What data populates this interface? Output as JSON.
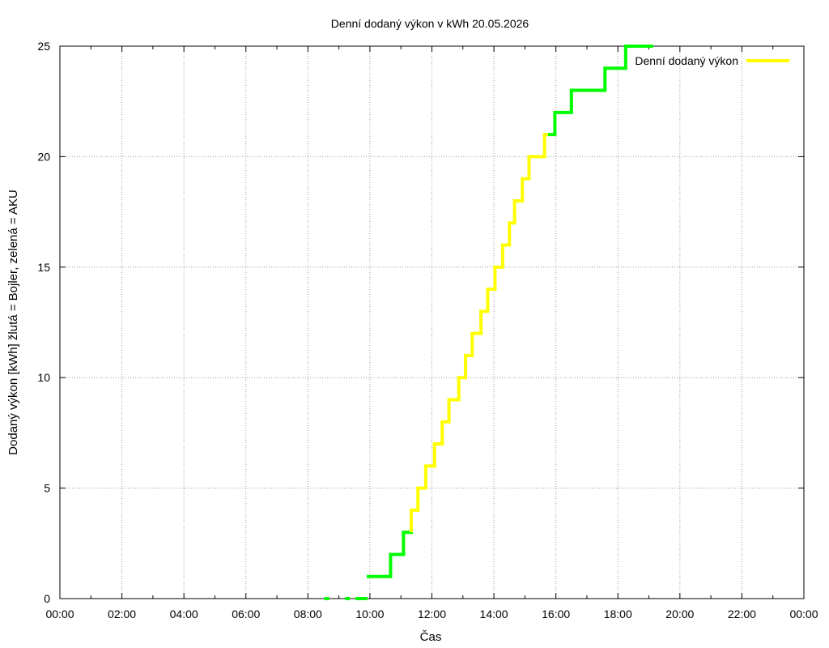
{
  "chart_data": {
    "type": "line",
    "title": "Denní dodaný výkon v kWh 20.05.2026",
    "xlabel": "Čas",
    "ylabel": "Dodaný výkon [kWh]  žlutá = Bojler, zelená = AKU",
    "x_ticks": [
      "00:00",
      "02:00",
      "04:00",
      "06:00",
      "08:00",
      "10:00",
      "12:00",
      "14:00",
      "16:00",
      "18:00",
      "20:00",
      "22:00",
      "00:00"
    ],
    "y_ticks": [
      0,
      5,
      10,
      15,
      20,
      25
    ],
    "xlim_hours": [
      0,
      24
    ],
    "ylim": [
      0,
      25
    ],
    "grid": true,
    "legend": {
      "label": "Denní dodaný výkon",
      "placement": "top-right",
      "color": "#ffff00"
    },
    "colors": {
      "Bojler": "#ffff00",
      "AKU": "#00ff00"
    },
    "steps": [
      [
        "08:35",
        "08:38",
        0,
        "AKU"
      ],
      [
        "09:15",
        "09:18",
        0,
        "AKU"
      ],
      [
        "09:35",
        "09:42",
        0,
        "AKU"
      ],
      [
        "09:47",
        "09:52",
        0,
        "AKU"
      ],
      [
        "09:57",
        "10:40",
        1,
        "AKU"
      ],
      [
        "10:40",
        "11:05",
        2,
        "AKU"
      ],
      [
        "11:05",
        "11:20",
        3,
        "AKU"
      ],
      [
        "11:20",
        "11:33",
        4,
        "Bojler"
      ],
      [
        "11:33",
        "11:48",
        5,
        "Bojler"
      ],
      [
        "11:48",
        "12:05",
        6,
        "Bojler"
      ],
      [
        "12:05",
        "12:20",
        7,
        "Bojler"
      ],
      [
        "12:20",
        "12:33",
        8,
        "Bojler"
      ],
      [
        "12:33",
        "12:52",
        9,
        "Bojler"
      ],
      [
        "12:52",
        "13:05",
        10,
        "Bojler"
      ],
      [
        "13:05",
        "13:18",
        11,
        "Bojler"
      ],
      [
        "13:18",
        "13:35",
        12,
        "Bojler"
      ],
      [
        "13:35",
        "13:48",
        13,
        "Bojler"
      ],
      [
        "13:48",
        "14:02",
        14,
        "Bojler"
      ],
      [
        "14:02",
        "14:17",
        15,
        "Bojler"
      ],
      [
        "14:17",
        "14:30",
        16,
        "Bojler"
      ],
      [
        "14:30",
        "14:40",
        17,
        "Bojler"
      ],
      [
        "14:40",
        "14:55",
        18,
        "Bojler"
      ],
      [
        "14:55",
        "15:08",
        19,
        "Bojler"
      ],
      [
        "15:08",
        "15:38",
        20,
        "Bojler"
      ],
      [
        "15:38",
        "15:48",
        21,
        "Bojler"
      ],
      [
        "15:48",
        "15:58",
        21,
        "AKU"
      ],
      [
        "15:58",
        "16:30",
        22,
        "AKU"
      ],
      [
        "16:30",
        "17:35",
        23,
        "AKU"
      ],
      [
        "17:35",
        "18:15",
        24,
        "AKU"
      ],
      [
        "18:15",
        "19:05",
        25,
        "AKU"
      ]
    ]
  }
}
